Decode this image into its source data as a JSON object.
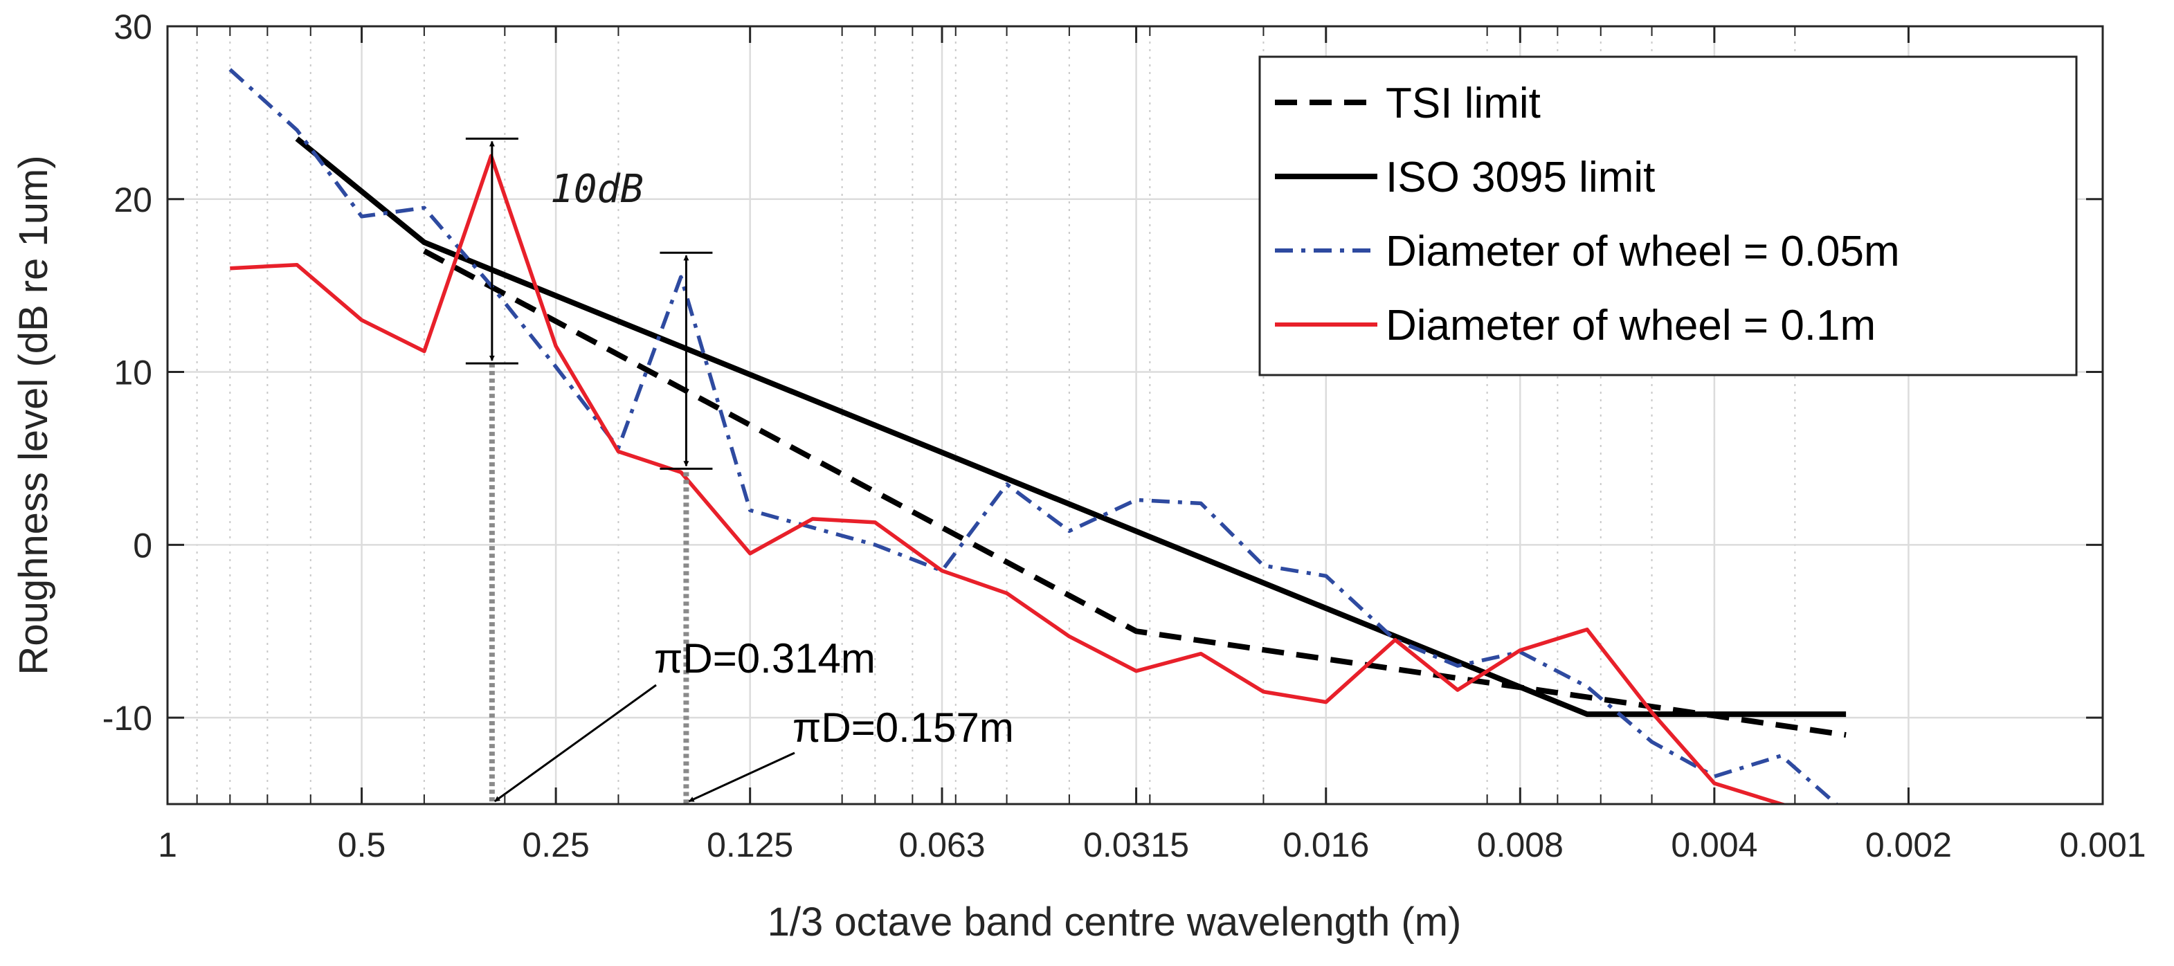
{
  "chart_data": {
    "type": "line",
    "xlabel": "1/3 octave band centre wavelength (m)",
    "ylabel": "Roughness level (dB re 1um)",
    "x_scale": "log",
    "x_reversed": true,
    "xlim": [
      1,
      0.001
    ],
    "ylim": [
      -15,
      30
    ],
    "x_ticks": [
      1,
      0.5,
      0.25,
      0.125,
      0.063,
      0.0315,
      0.016,
      0.008,
      0.004,
      0.002,
      0.001
    ],
    "x_tick_labels": [
      "1",
      "0.5",
      "0.25",
      "0.125",
      "0.063",
      "0.0315",
      "0.016",
      "0.008",
      "0.004",
      "0.002",
      "0.001"
    ],
    "y_ticks": [
      30,
      20,
      10,
      0,
      -10
    ],
    "y_tick_labels": [
      "30",
      "20",
      "10",
      "0",
      "-10"
    ],
    "grid": true,
    "legend_position": "top-right",
    "series": [
      {
        "name": "TSI limit",
        "color": "#000000",
        "style": "dashed",
        "x": [
          0.4,
          0.0315,
          0.0025
        ],
        "y": [
          17,
          -5,
          -11
        ]
      },
      {
        "name": "ISO 3095 limit",
        "color": "#000000",
        "style": "solid",
        "x": [
          0.63,
          0.4,
          0.0063,
          0.0025
        ],
        "y": [
          23.5,
          17.5,
          -9.8,
          -9.8
        ]
      },
      {
        "name": "Diameter of wheel = 0.05m",
        "color": "#2e4aa0",
        "style": "dashdot",
        "x": [
          0.8,
          0.63,
          0.5,
          0.4,
          0.315,
          0.25,
          0.2,
          0.16,
          0.125,
          0.1,
          0.08,
          0.063,
          0.05,
          0.04,
          0.0315,
          0.025,
          0.02,
          0.016,
          0.0125,
          0.01,
          0.008,
          0.0063,
          0.005,
          0.004,
          0.00315,
          0.0025,
          0.002
        ],
        "y": [
          27.5,
          24,
          19,
          19.5,
          15,
          10.3,
          5.6,
          15.5,
          2,
          1,
          0,
          -1.5,
          3.5,
          0.8,
          2.6,
          2.4,
          -1.2,
          -1.8,
          -5.5,
          -7,
          -6.2,
          -8.2,
          -11.4,
          -13.4,
          -12.2,
          -15.5,
          -19
        ]
      },
      {
        "name": "Diameter of wheel = 0.1m",
        "color": "#e8202a",
        "style": "solid",
        "x": [
          0.8,
          0.63,
          0.5,
          0.4,
          0.315,
          0.25,
          0.2,
          0.16,
          0.125,
          0.1,
          0.08,
          0.063,
          0.05,
          0.04,
          0.0315,
          0.025,
          0.02,
          0.016,
          0.0125,
          0.01,
          0.008,
          0.0063,
          0.005,
          0.004,
          0.00315,
          0.0025
        ],
        "y": [
          16,
          16.2,
          13,
          11.2,
          22.5,
          11.5,
          5.4,
          4.2,
          -0.5,
          1.5,
          1.3,
          -1.5,
          -2.8,
          -5.3,
          -7.3,
          -6.3,
          -8.5,
          -9.1,
          -5.5,
          -8.4,
          -6.1,
          -4.9,
          -9.7,
          -13.8,
          -15,
          -16
        ]
      }
    ],
    "annotations": {
      "pd_0314": {
        "text_prefix": "π",
        "text_main": "D=0.314m",
        "x": 0.314,
        "y_from": -15,
        "y_to": 10.5
      },
      "pd_0157": {
        "text_prefix": "π",
        "text_main": "D=0.157m",
        "x": 0.157,
        "y_from": -15,
        "y_to": 4.2
      },
      "range_1": {
        "x": 0.314,
        "y_top": 23.5,
        "y_bottom": 10.5
      },
      "range_2": {
        "x": 0.157,
        "y_top": 16.9,
        "y_bottom": 4.4
      },
      "ten_db": "10dB"
    }
  }
}
